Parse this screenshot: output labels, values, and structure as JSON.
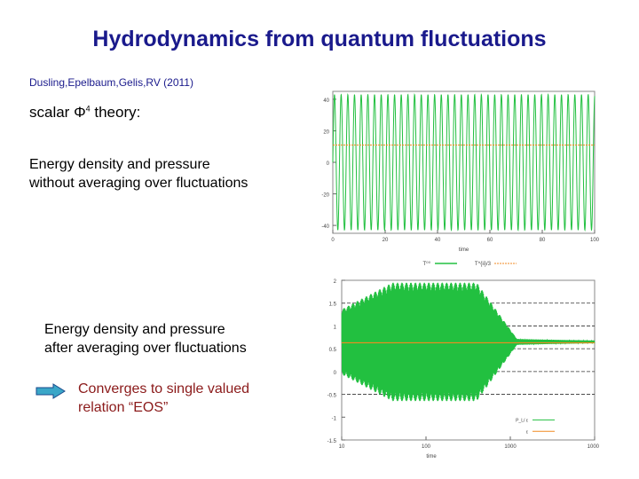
{
  "slide": {
    "title": "Hydrodynamics from quantum fluctuations",
    "authors": "Dusling,Epelbaum,Gelis,RV (2011)",
    "scalar_prefix": "scalar Φ",
    "scalar_sup": "4",
    "scalar_suffix": " theory:",
    "block1": [
      "Energy density and pressure",
      "without averaging over fluctuations"
    ],
    "block2": [
      "Energy density and pressure",
      "after averaging over fluctuations"
    ],
    "conclusion": [
      "Converges to single valued",
      "relation “EOS”"
    ],
    "arrow_color": "#3aa6c8"
  },
  "chart_data": [
    {
      "type": "line",
      "xlabel": "time",
      "xlim": [
        0,
        100
      ],
      "ylim": [
        -45,
        45
      ],
      "x_ticks": [
        "0",
        "20",
        "40",
        "60",
        "80",
        "100"
      ],
      "y_ticks": [
        "40",
        "20",
        "0",
        "-20",
        "-40"
      ],
      "y_tick_values": [
        40,
        20,
        0,
        -20,
        -40
      ],
      "legend_position": "bottom",
      "series": [
        {
          "name": "T⁰⁰",
          "color": "#22c040",
          "kind": "oscillation",
          "amplitude": 43,
          "period": 2.55
        },
        {
          "name": "T^{ii}/3",
          "color": "#f08a20",
          "kind": "constant",
          "value": 11
        }
      ]
    },
    {
      "type": "line",
      "xlabel": "time",
      "xscale": "log",
      "xlim": [
        10,
        10000
      ],
      "ylim": [
        -1.5,
        2
      ],
      "x_ticks": [
        "10",
        "100",
        "1000",
        "10000"
      ],
      "y_ticks": [
        "2",
        "1.5",
        "1",
        "0.5",
        "0",
        "-0.5",
        "-1",
        "-1.5"
      ],
      "y_tick_values": [
        2,
        1.5,
        1,
        0.5,
        0,
        -0.5,
        -1,
        -1.5
      ],
      "grid_y_values": [
        1.5,
        1,
        0.5,
        0,
        -0.5
      ],
      "legend_position": "bottom-right",
      "series": [
        {
          "name": "P_L/ ε",
          "color": "#22c040",
          "kind": "damped",
          "mean": 0.65,
          "amplitude": 1.3,
          "decay_start": 400,
          "decay_end": 1200
        },
        {
          "name": "ε",
          "color": "#f08a20",
          "kind": "constant",
          "value": 0.63
        }
      ]
    }
  ]
}
